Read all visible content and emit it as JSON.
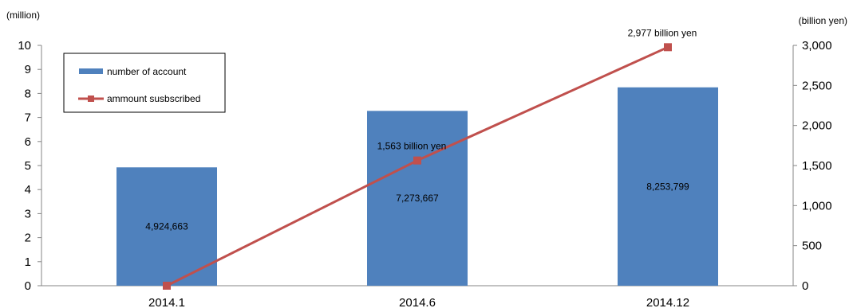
{
  "chart_data": {
    "type": "bar",
    "categories": [
      "2014.1",
      "2014.6",
      "2014.12"
    ],
    "series": [
      {
        "name": "number of account",
        "type": "bar",
        "axis": "left",
        "values": [
          4924663,
          7273667,
          8253799
        ],
        "labels": [
          "4,924,663",
          "7,273,667",
          "8,253,799"
        ],
        "color": "#4f81bd"
      },
      {
        "name": "ammount susbscribed",
        "type": "line",
        "axis": "right",
        "values": [
          0,
          1563,
          2977
        ],
        "labels": [
          "",
          "1,563 billion yen",
          "2,977 billion yen"
        ],
        "color": "#c0504d"
      }
    ],
    "left_axis": {
      "unit": "(million)",
      "ylim": [
        0,
        10
      ],
      "ticks": [
        "0",
        "1",
        "2",
        "3",
        "4",
        "5",
        "6",
        "7",
        "8",
        "9",
        "10"
      ]
    },
    "right_axis": {
      "unit": "(billion yen)",
      "ylim": [
        0,
        3000
      ],
      "ticks": [
        "0",
        "500",
        "1,000",
        "1,500",
        "2,000",
        "2,500",
        "3,000"
      ]
    },
    "legend": "top-left",
    "grid": false
  }
}
